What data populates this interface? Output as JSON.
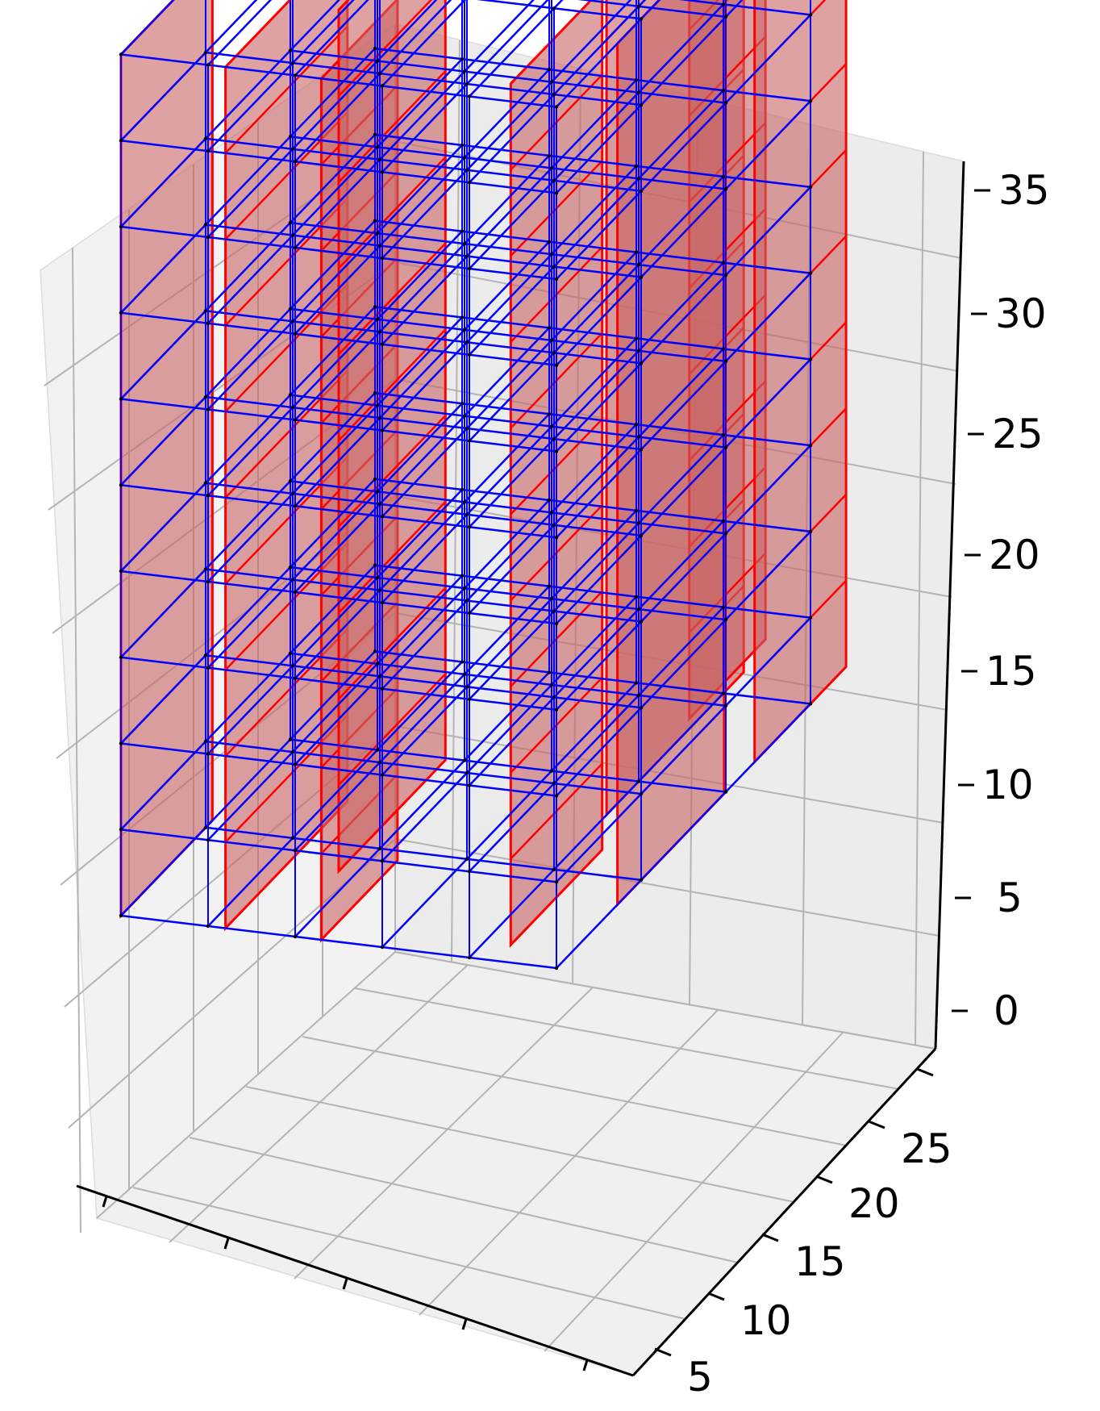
{
  "chart_data": {
    "type": "3d-structural-wireframe",
    "z_axis": {
      "ticks": [
        "0",
        "5",
        "10",
        "15",
        "20",
        "25",
        "30",
        "35"
      ]
    },
    "y_axis": {
      "ticks": [
        "5",
        "10",
        "15",
        "20",
        "25"
      ]
    },
    "x_axis": {
      "ticks": [
        "",
        "",
        "",
        "",
        ""
      ]
    },
    "stories": 10,
    "colors": {
      "frame": "#0000ff",
      "wall_edge": "#ff0000",
      "wall_fill": "#c86464",
      "pane": "#f2f2f2",
      "grid": "#b0b0b0",
      "node": "#000000"
    }
  }
}
